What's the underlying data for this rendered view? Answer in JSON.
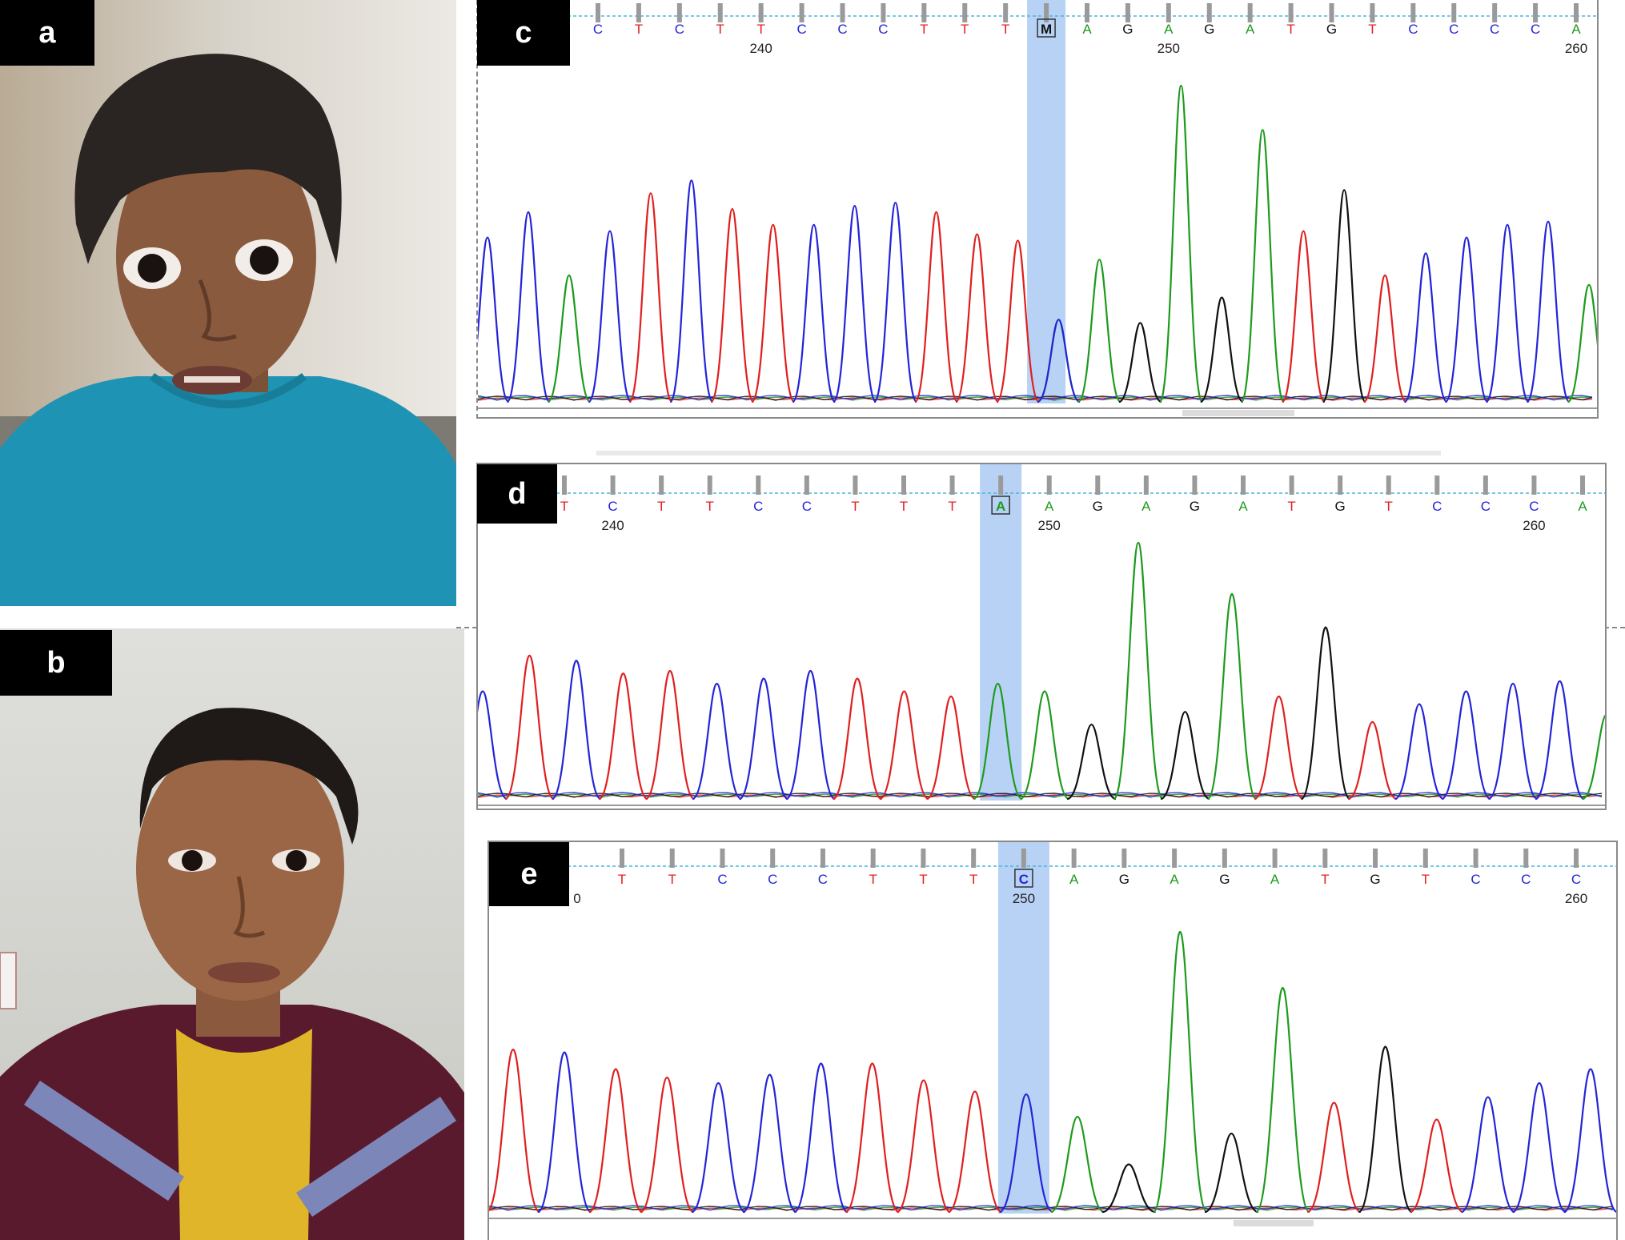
{
  "labels": {
    "a": "a",
    "b": "b",
    "c": "c",
    "d": "d",
    "e": "e"
  },
  "colors": {
    "A": "#1e9b1e",
    "C": "#2424d8",
    "G": "#111111",
    "T": "#e01f1f",
    "highlight": "#b8d2f5",
    "guide": "#4ab6d8",
    "tick": "#9a9a9a"
  },
  "photo_a": {
    "kind": "clinical-photo",
    "subject": "child-face",
    "shirt_color": "#1f93b3"
  },
  "photo_b": {
    "kind": "clinical-photo",
    "subject": "child-face",
    "shirt_color": "#5a1a2e"
  },
  "chromatograms": [
    {
      "panel": "c",
      "bases": [
        "C",
        "T",
        "C",
        "T",
        "T",
        "C",
        "C",
        "C",
        "T",
        "T",
        "T",
        "M",
        "A",
        "G",
        "A",
        "G",
        "A",
        "T",
        "G",
        "T",
        "C",
        "C",
        "C",
        "C",
        "A"
      ],
      "highlight_index": 11,
      "position_labels": [
        {
          "index": 4,
          "text": "240"
        },
        {
          "index": 14,
          "text": "250"
        },
        {
          "index": 24,
          "text": "260"
        }
      ],
      "peaks": [
        {
          "base": "C",
          "h": 0.52
        },
        {
          "base": "C",
          "h": 0.6
        },
        {
          "base": "A",
          "h": 0.4
        },
        {
          "base": "C",
          "h": 0.54
        },
        {
          "base": "T",
          "h": 0.66
        },
        {
          "base": "C",
          "h": 0.7
        },
        {
          "base": "T",
          "h": 0.61
        },
        {
          "base": "T",
          "h": 0.56
        },
        {
          "base": "C",
          "h": 0.56
        },
        {
          "base": "C",
          "h": 0.62
        },
        {
          "base": "C",
          "h": 0.63
        },
        {
          "base": "T",
          "h": 0.6
        },
        {
          "base": "T",
          "h": 0.53
        },
        {
          "base": "T",
          "h": 0.51
        },
        {
          "base": "M",
          "h": 0.26
        },
        {
          "base": "A",
          "h": 0.45
        },
        {
          "base": "G",
          "h": 0.25
        },
        {
          "base": "A",
          "h": 1.0
        },
        {
          "base": "G",
          "h": 0.33
        },
        {
          "base": "A",
          "h": 0.86
        },
        {
          "base": "T",
          "h": 0.54
        },
        {
          "base": "G",
          "h": 0.67
        },
        {
          "base": "T",
          "h": 0.4
        },
        {
          "base": "C",
          "h": 0.47
        },
        {
          "base": "C",
          "h": 0.52
        },
        {
          "base": "C",
          "h": 0.56
        },
        {
          "base": "C",
          "h": 0.57
        },
        {
          "base": "A",
          "h": 0.37
        }
      ]
    },
    {
      "panel": "d",
      "bases": [
        "T",
        "C",
        "T",
        "T",
        "C",
        "C",
        "T",
        "T",
        "T",
        "A",
        "A",
        "G",
        "A",
        "G",
        "A",
        "T",
        "G",
        "T",
        "C",
        "C",
        "C",
        "A"
      ],
      "highlight_index": 9,
      "position_labels": [
        {
          "index": 1,
          "text": "240"
        },
        {
          "index": 10,
          "text": "250"
        },
        {
          "index": 20,
          "text": "260"
        }
      ],
      "peaks": [
        {
          "base": "C",
          "h": 0.42
        },
        {
          "base": "T",
          "h": 0.56
        },
        {
          "base": "C",
          "h": 0.54
        },
        {
          "base": "T",
          "h": 0.49
        },
        {
          "base": "T",
          "h": 0.5
        },
        {
          "base": "C",
          "h": 0.45
        },
        {
          "base": "C",
          "h": 0.47
        },
        {
          "base": "C",
          "h": 0.5
        },
        {
          "base": "T",
          "h": 0.47
        },
        {
          "base": "T",
          "h": 0.42
        },
        {
          "base": "T",
          "h": 0.4
        },
        {
          "base": "A",
          "h": 0.45
        },
        {
          "base": "A",
          "h": 0.42
        },
        {
          "base": "G",
          "h": 0.29
        },
        {
          "base": "A",
          "h": 1.0
        },
        {
          "base": "G",
          "h": 0.34
        },
        {
          "base": "A",
          "h": 0.8
        },
        {
          "base": "T",
          "h": 0.4
        },
        {
          "base": "G",
          "h": 0.67
        },
        {
          "base": "T",
          "h": 0.3
        },
        {
          "base": "C",
          "h": 0.37
        },
        {
          "base": "C",
          "h": 0.42
        },
        {
          "base": "C",
          "h": 0.45
        },
        {
          "base": "C",
          "h": 0.46
        },
        {
          "base": "A",
          "h": 0.33
        }
      ]
    },
    {
      "panel": "e",
      "bases": [
        "T",
        "T",
        "C",
        "C",
        "C",
        "T",
        "T",
        "T",
        "C",
        "A",
        "G",
        "A",
        "G",
        "A",
        "T",
        "G",
        "T",
        "C",
        "C",
        "C"
      ],
      "highlight_index": 8,
      "partial_start_label": "0",
      "position_labels": [
        {
          "index": 8,
          "text": "250"
        },
        {
          "index": 19,
          "text": "260"
        }
      ],
      "peaks": [
        {
          "base": "T",
          "h": 0.58
        },
        {
          "base": "C",
          "h": 0.57
        },
        {
          "base": "T",
          "h": 0.51
        },
        {
          "base": "T",
          "h": 0.48
        },
        {
          "base": "C",
          "h": 0.46
        },
        {
          "base": "C",
          "h": 0.49
        },
        {
          "base": "C",
          "h": 0.53
        },
        {
          "base": "T",
          "h": 0.53
        },
        {
          "base": "T",
          "h": 0.47
        },
        {
          "base": "T",
          "h": 0.43
        },
        {
          "base": "C",
          "h": 0.42
        },
        {
          "base": "A",
          "h": 0.34
        },
        {
          "base": "G",
          "h": 0.17
        },
        {
          "base": "A",
          "h": 1.0
        },
        {
          "base": "G",
          "h": 0.28
        },
        {
          "base": "A",
          "h": 0.8
        },
        {
          "base": "T",
          "h": 0.39
        },
        {
          "base": "G",
          "h": 0.59
        },
        {
          "base": "T",
          "h": 0.33
        },
        {
          "base": "C",
          "h": 0.41
        },
        {
          "base": "C",
          "h": 0.46
        },
        {
          "base": "C",
          "h": 0.51
        }
      ]
    }
  ]
}
